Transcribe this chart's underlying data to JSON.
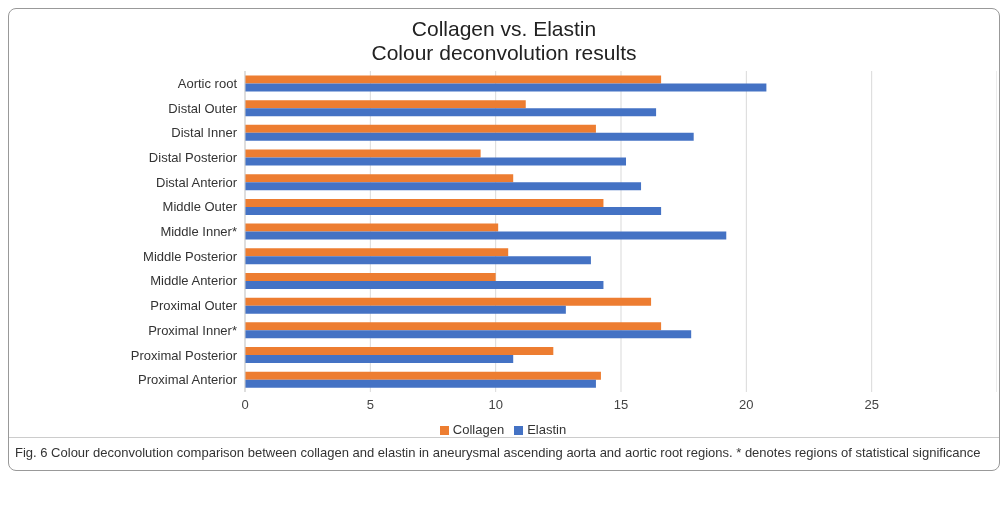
{
  "chart_data": {
    "type": "bar",
    "orientation": "horizontal",
    "title": "Collagen vs. Elastin",
    "subtitle": "Colour deconvolution results",
    "categories": [
      "Aortic root",
      "Distal Outer",
      "Distal Inner",
      "Distal Posterior",
      "Distal Anterior",
      "Middle Outer",
      "Middle Inner*",
      "Middle Posterior",
      "Middle Anterior",
      "Proximal Outer",
      "Proximal Inner*",
      "Proximal Posterior",
      "Proximal Anterior"
    ],
    "series": [
      {
        "name": "Collagen",
        "color": "#ed7d31",
        "values": [
          16.6,
          11.2,
          14.0,
          9.4,
          10.7,
          14.3,
          10.1,
          10.5,
          10.0,
          16.2,
          16.6,
          12.3,
          14.2
        ]
      },
      {
        "name": "Elastin",
        "color": "#4472c4",
        "values": [
          20.8,
          16.4,
          17.9,
          15.2,
          15.8,
          16.6,
          19.2,
          13.8,
          14.3,
          12.8,
          17.8,
          10.7,
          14.0
        ]
      }
    ],
    "xlim": [
      0,
      30
    ],
    "xticks": [
      0,
      5,
      10,
      15,
      20,
      25
    ],
    "grid": "x",
    "legend": "bottom",
    "annotations": [
      "Fig. 6 Colour deconvolution comparison between collagen and elastin in aneurysmal ascending aorta and aortic root regions. * denotes regions of statistical significance"
    ]
  }
}
